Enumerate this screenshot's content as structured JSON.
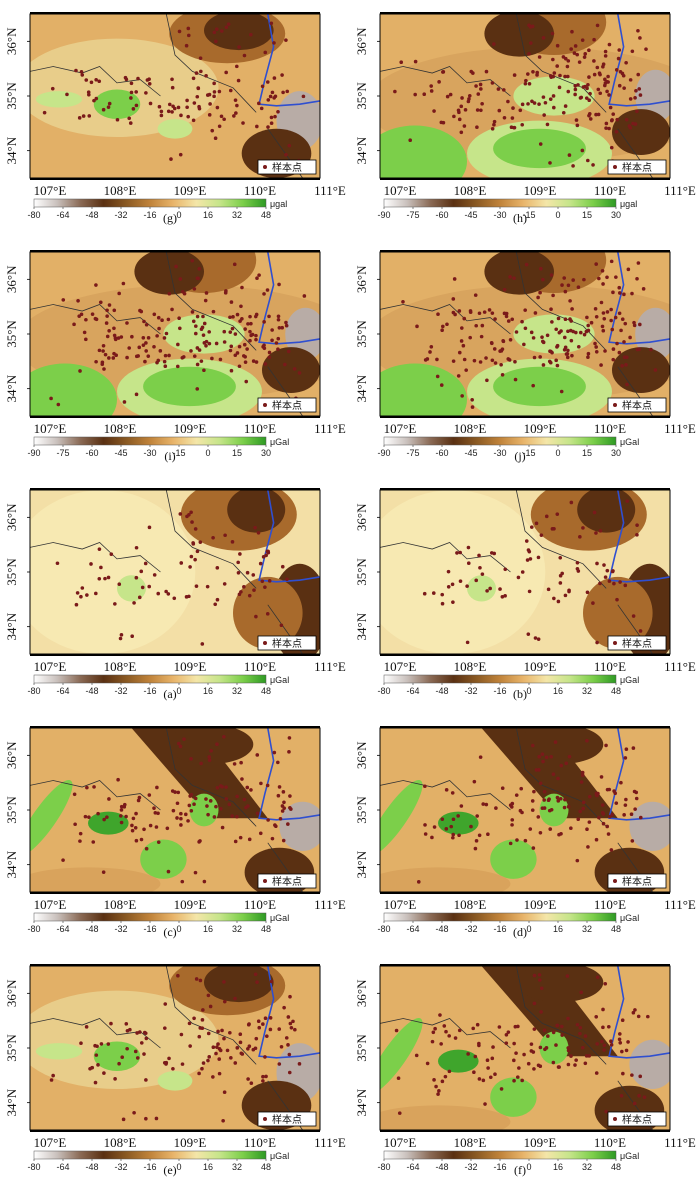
{
  "legend_label": "样本点",
  "x_ticks": [
    "107°E",
    "108°E",
    "109°E",
    "110°E",
    "111°E"
  ],
  "y_ticks": [
    "34°N",
    "35°N",
    "36°N"
  ],
  "panels": [
    {
      "id": "g",
      "label": "(g)",
      "unit": "μgal",
      "scale": [
        "-80",
        "-64",
        "-48",
        "-32",
        "-16",
        "0",
        "16",
        "32",
        "48"
      ],
      "pattern": "mix"
    },
    {
      "id": "h",
      "label": "(h)",
      "unit": "μgal",
      "scale": [
        "-90",
        "-75",
        "-60",
        "-45",
        "-30",
        "-15",
        "0",
        "15",
        "30"
      ],
      "pattern": "south-green"
    },
    {
      "id": "i",
      "label": "(i)",
      "unit": "μGal",
      "scale": [
        "-90",
        "-75",
        "-60",
        "-45",
        "-30",
        "-15",
        "0",
        "15",
        "30"
      ],
      "pattern": "south-green"
    },
    {
      "id": "j",
      "label": "(j)",
      "unit": "μGal",
      "scale": [
        "-90",
        "-75",
        "-60",
        "-45",
        "-30",
        "-15",
        "0",
        "15",
        "30"
      ],
      "pattern": "south-green"
    },
    {
      "id": "a",
      "label": "(a)",
      "unit": "μGal",
      "scale": [
        "-80",
        "-64",
        "-48",
        "-32",
        "-16",
        "0",
        "16",
        "32",
        "48"
      ],
      "pattern": "pale"
    },
    {
      "id": "b",
      "label": "(b)",
      "unit": "μGal",
      "scale": [
        "-80",
        "-64",
        "-48",
        "-32",
        "-16",
        "0",
        "16",
        "32",
        "48"
      ],
      "pattern": "pale"
    },
    {
      "id": "c",
      "label": "(c)",
      "unit": "μGal",
      "scale": [
        "-80",
        "-64",
        "-48",
        "-32",
        "-16",
        "0",
        "16",
        "32",
        "48"
      ],
      "pattern": "streak"
    },
    {
      "id": "d",
      "label": "(d)",
      "unit": "μGal",
      "scale": [
        "-80",
        "-64",
        "-48",
        "-32",
        "-16",
        "0",
        "16",
        "32",
        "48"
      ],
      "pattern": "streak"
    },
    {
      "id": "e",
      "label": "(e)",
      "unit": "μGal",
      "scale": [
        "-80",
        "-64",
        "-48",
        "-32",
        "-16",
        "0",
        "16",
        "32",
        "48"
      ],
      "pattern": "mix"
    },
    {
      "id": "f",
      "label": "(f)",
      "unit": "μGal",
      "scale": [
        "-80",
        "-64",
        "-48",
        "-32",
        "-16",
        "0",
        "16",
        "32",
        "48"
      ],
      "pattern": "streak"
    }
  ],
  "colors": {
    "water": "#2f4fd0",
    "sample_point": "#7a1a1a",
    "colorbar": [
      "#ffffff",
      "#c9c0bc",
      "#8a6a55",
      "#5a3012",
      "#8b5a23",
      "#c0833a",
      "#e8b46a",
      "#f4e6a8",
      "#c6e58a",
      "#7ccf4a",
      "#2e9a24"
    ]
  }
}
